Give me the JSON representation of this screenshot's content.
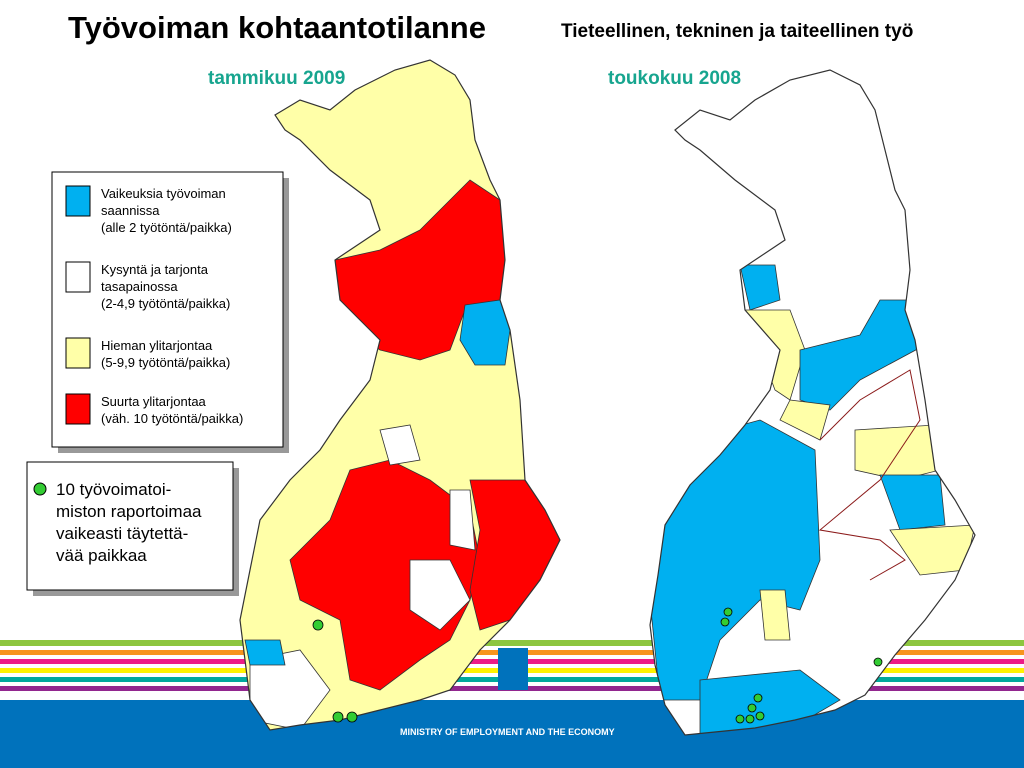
{
  "header": {
    "title": "Työvoiman kohtaantotilanne",
    "subtitle": "Tieteellinen, tekninen ja taiteellinen työ"
  },
  "maps": [
    {
      "label": "tammikuu 2009"
    },
    {
      "label": "toukokuu 2008"
    }
  ],
  "legend": {
    "items": [
      {
        "color": "#00b0f0",
        "lines": [
          "Vaikeuksia työvoiman",
          "saannissa",
          "(alle 2 työtöntä/paikka)"
        ]
      },
      {
        "color": "#ffffff",
        "lines": [
          "Kysyntä ja tarjonta",
          "tasapainossa",
          "(2-4,9 työtöntä/paikka)"
        ]
      },
      {
        "color": "#ffffa8",
        "lines": [
          "Hieman ylitarjontaa",
          "(5-9,9 työtöntä/paikka)"
        ]
      },
      {
        "color": "#ff0000",
        "lines": [
          "Suurta ylitarjontaa",
          "(väh. 10 työtöntä/paikka)"
        ]
      }
    ]
  },
  "note": {
    "lines": [
      "10 työvoimatoi-",
      "miston raportoimaa",
      "vaikeasti täytettä-",
      "vää paikkaa"
    ]
  },
  "footer": {
    "text": "MINISTRY OF EMPLOYMENT AND THE ECONOMY"
  }
}
